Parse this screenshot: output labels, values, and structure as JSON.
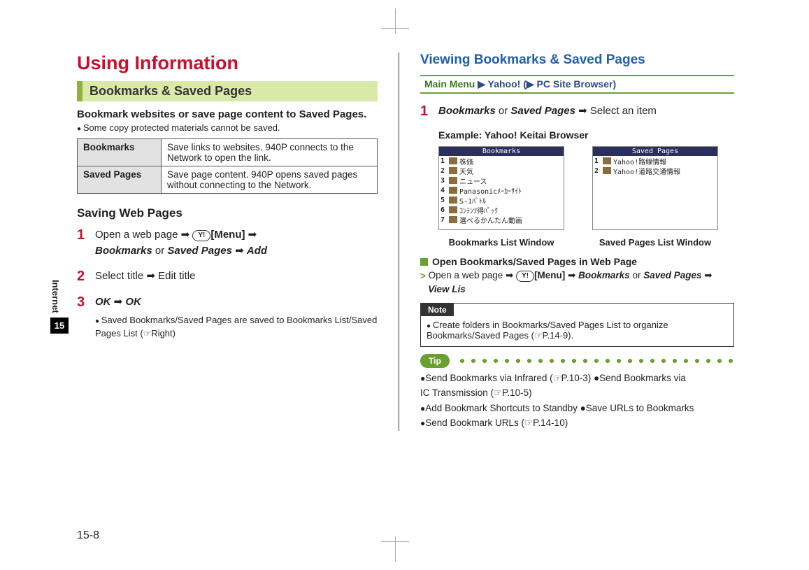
{
  "colors": {
    "accent_red": "#c8102e",
    "accent_blue": "#1f5fa8",
    "accent_green": "#6aa030",
    "section_bg": "#d9eaa8",
    "section_border": "#8bb33d",
    "table_label_bg": "#e2e2e2",
    "phone_head_bg": "#2b2f5e",
    "note_tab_bg": "#333333"
  },
  "sidebar": {
    "label": "Internet",
    "chapter": "15"
  },
  "footer": {
    "page": "15-8"
  },
  "left": {
    "title": "Using Information",
    "section": "Bookmarks & Saved Pages",
    "lead": "Bookmark websites or save page content to Saved Pages.",
    "lead_note": "Some copy protected materials cannot be saved.",
    "table": {
      "rows": [
        {
          "label": "Bookmarks",
          "desc": "Save links to websites. 940P connects to the Network to open the link."
        },
        {
          "label": "Saved Pages",
          "desc": "Save page content. 940P opens saved pages without connecting to the Network."
        }
      ]
    },
    "subhead": "Saving Web Pages",
    "steps": [
      {
        "num": "1",
        "html_parts": {
          "a1": "Open a web page ➡ ",
          "key": "Y!",
          "a2": "[Menu]",
          "a3": " ➡ ",
          "it1": "Bookmarks",
          "mid": " or ",
          "it2": "Saved Pages",
          "a4": " ➡ ",
          "it3": "Add"
        }
      },
      {
        "num": "2",
        "text": "Select title ➡ Edit title"
      },
      {
        "num": "3",
        "it1": "OK",
        "mid": " ➡ ",
        "it2": "OK",
        "sub": "Saved Bookmarks/Saved Pages are saved to Bookmarks List/Saved Pages List (☞Right)"
      }
    ]
  },
  "right": {
    "title": "Viewing Bookmarks & Saved Pages",
    "mainmenu": {
      "label": "Main Menu",
      "p1": "Yahoo! (",
      "p2": "PC Site Browser)"
    },
    "step1": {
      "num": "1",
      "it1": "Bookmarks",
      "mid": " or ",
      "it2": "Saved Pages",
      "tail": " ➡ Select an item"
    },
    "example": "Example: Yahoo! Keitai Browser",
    "phones": {
      "left": {
        "head": "Bookmarks",
        "rows": [
          "株価",
          "天気",
          "ニュース",
          "Panasonicﾒｰｶｰｻｲﾄ",
          "S-1ﾊﾞﾄﾙ",
          "ｺﾝﾃﾝﾂ得ﾊﾟｯｸ",
          "選べるかんたん動画"
        ],
        "caption": "Bookmarks List Window"
      },
      "right": {
        "head": "Saved Pages",
        "rows": [
          "Yahoo!路線情報",
          "Yahoo!道路交通情報"
        ],
        "caption": "Saved Pages List Window"
      }
    },
    "open": {
      "head": "Open Bookmarks/Saved Pages in Web Page",
      "a1": "Open a web page ➡ ",
      "key": "Y!",
      "a2": "[Menu]",
      "a3": " ➡ ",
      "it1": "Bookmarks",
      "mid": " or ",
      "it2": "Saved Pages",
      "a4": " ➡ ",
      "it3": "View Lis"
    },
    "note": {
      "label": "Note",
      "body": "Create folders in Bookmarks/Saved Pages List to organize Bookmarks/Saved Pages (☞P.14-9)."
    },
    "tip": {
      "label": "Tip",
      "lines": [
        "Send Bookmarks via Infrared (☞P.10-3) ●Send Bookmarks via",
        "IC Transmission (☞P.10-5)",
        "Add Bookmark Shortcuts to Standby ●Save URLs to Bookmarks",
        "Send Bookmark URLs (☞P.14-10)"
      ]
    }
  }
}
